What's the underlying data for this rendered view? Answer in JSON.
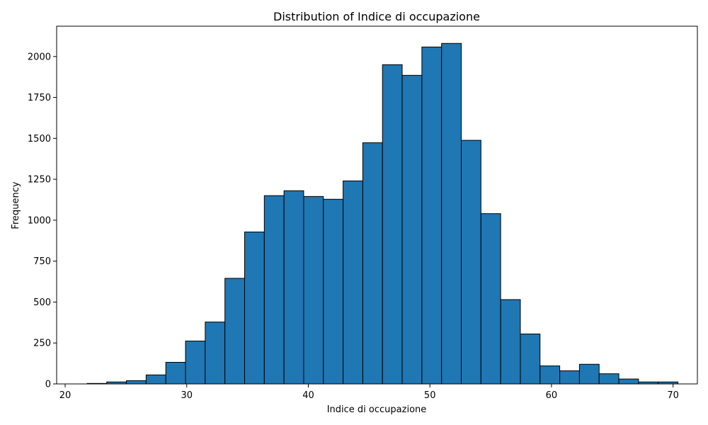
{
  "chart_data": {
    "type": "bar",
    "title": "Distribution of Indice di occupazione",
    "xlabel": "Indice di occupazione",
    "ylabel": "Frequency",
    "xlim": [
      19.3,
      72.0
    ],
    "ylim": [
      0,
      2185
    ],
    "xticks": [
      20,
      30,
      40,
      50,
      60,
      70
    ],
    "yticks": [
      0,
      250,
      500,
      750,
      1000,
      1250,
      1500,
      1750,
      2000
    ],
    "grid": false,
    "bin_start": 21.8,
    "bin_width": 1.62,
    "values": [
      3,
      12,
      20,
      55,
      132,
      262,
      378,
      645,
      928,
      1150,
      1180,
      1145,
      1128,
      1240,
      1473,
      1950,
      1885,
      2058,
      2080,
      1488,
      1040,
      515,
      305,
      110,
      80,
      120,
      62,
      30,
      12,
      12
    ],
    "bar_color": "#1f77b4",
    "edge_color": "#000000"
  }
}
